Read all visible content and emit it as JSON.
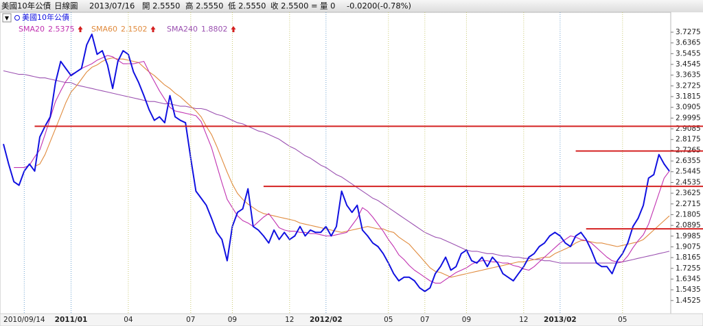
{
  "chart_data": {
    "type": "line",
    "header": [
      "美國10年公債",
      "日線圖",
      "2013/07/16",
      "開 2.5550",
      "高 2.5550",
      "低 2.5550",
      "收 2.5500 =",
      "量 0",
      "-0.0200(-0.78%)"
    ],
    "categories": [
      null,
      null,
      null,
      null,
      "2010/09/14",
      null,
      null,
      null,
      null,
      null,
      null,
      null,
      null,
      "2011/01",
      null,
      null,
      null,
      null,
      null,
      null,
      null,
      null,
      null,
      null,
      "04",
      null,
      null,
      null,
      null,
      null,
      null,
      null,
      null,
      null,
      null,
      null,
      "07",
      null,
      null,
      null,
      null,
      null,
      null,
      null,
      "09",
      null,
      null,
      null,
      null,
      null,
      null,
      null,
      null,
      null,
      null,
      "12",
      null,
      null,
      null,
      null,
      null,
      null,
      "2012/02",
      null,
      null,
      null,
      null,
      null,
      null,
      null,
      null,
      null,
      null,
      null,
      "05",
      null,
      null,
      null,
      null,
      null,
      null,
      "07",
      null,
      null,
      null,
      null,
      null,
      null,
      null,
      "09",
      null,
      null,
      null,
      null,
      null,
      null,
      null,
      null,
      null,
      null,
      "12",
      null,
      null,
      null,
      null,
      null,
      null,
      "2013/02",
      null,
      null,
      null,
      null,
      null,
      null,
      null,
      null,
      null,
      null,
      null,
      "05",
      null,
      null,
      null,
      null,
      null,
      null,
      null,
      null,
      null
    ],
    "series": [
      {
        "name": "美國10年公債",
        "color": "#1010e0",
        "values": [
          2.78,
          2.61,
          2.46,
          2.43,
          2.55,
          2.61,
          2.55,
          2.84,
          2.93,
          3.01,
          3.3,
          3.48,
          3.42,
          3.36,
          3.39,
          3.42,
          3.62,
          3.71,
          3.54,
          3.57,
          3.45,
          3.25,
          3.48,
          3.57,
          3.54,
          3.39,
          3.3,
          3.19,
          3.07,
          2.98,
          3.01,
          2.96,
          3.19,
          3.01,
          2.98,
          2.96,
          2.66,
          2.38,
          2.32,
          2.26,
          2.15,
          2.03,
          1.97,
          1.79,
          2.08,
          2.2,
          2.23,
          2.4,
          2.08,
          2.05,
          2.0,
          1.94,
          2.05,
          1.97,
          2.03,
          1.97,
          2.0,
          2.08,
          2.0,
          2.05,
          2.03,
          2.03,
          2.08,
          2.0,
          2.08,
          2.38,
          2.26,
          2.2,
          2.26,
          2.05,
          2.0,
          1.94,
          1.91,
          1.85,
          1.77,
          1.68,
          1.62,
          1.65,
          1.65,
          1.62,
          1.56,
          1.53,
          1.56,
          1.68,
          1.74,
          1.82,
          1.71,
          1.74,
          1.85,
          1.88,
          1.79,
          1.77,
          1.82,
          1.74,
          1.82,
          1.77,
          1.68,
          1.65,
          1.62,
          1.68,
          1.74,
          1.82,
          1.85,
          1.91,
          1.94,
          2.0,
          2.03,
          2.0,
          1.94,
          1.91,
          2.0,
          2.03,
          1.97,
          1.88,
          1.77,
          1.74,
          1.74,
          1.68,
          1.79,
          1.85,
          1.94,
          2.08,
          2.15,
          2.26,
          2.49,
          2.52,
          2.69,
          2.61,
          2.55
        ]
      },
      {
        "name": "SMA20",
        "latest": "2.5375",
        "color": "#c030b0",
        "values": [
          null,
          null,
          2.58,
          2.58,
          2.58,
          2.6,
          2.67,
          2.73,
          2.86,
          3.0,
          3.14,
          3.23,
          3.31,
          3.37,
          3.39,
          3.42,
          3.44,
          3.46,
          3.49,
          3.51,
          3.53,
          3.52,
          3.49,
          3.46,
          3.46,
          3.46,
          3.47,
          3.48,
          3.39,
          3.31,
          3.23,
          3.16,
          3.09,
          3.06,
          3.05,
          3.04,
          3.03,
          3.02,
          2.97,
          2.86,
          2.75,
          2.6,
          2.45,
          2.31,
          2.24,
          2.17,
          2.13,
          2.11,
          2.08,
          2.12,
          2.16,
          2.19,
          2.13,
          2.07,
          2.05,
          2.04,
          2.04,
          2.03,
          2.03,
          2.02,
          2.02,
          2.01,
          2.0,
          2.0,
          2.01,
          2.02,
          2.03,
          2.09,
          2.15,
          2.24,
          2.21,
          2.16,
          2.1,
          2.04,
          1.97,
          1.91,
          1.84,
          1.8,
          1.75,
          1.71,
          1.68,
          1.65,
          1.62,
          1.6,
          1.6,
          1.63,
          1.66,
          1.69,
          1.71,
          1.73,
          1.76,
          1.78,
          1.79,
          1.79,
          1.78,
          1.78,
          1.77,
          1.77,
          1.75,
          1.74,
          1.72,
          1.71,
          1.74,
          1.78,
          1.82,
          1.86,
          1.9,
          1.94,
          1.97,
          2.0,
          1.99,
          1.97,
          1.96,
          1.94,
          1.9,
          1.86,
          1.82,
          1.79,
          1.78,
          1.78,
          1.83,
          1.9,
          1.96,
          2.01,
          2.1,
          2.23,
          2.36,
          2.49,
          2.55
        ]
      },
      {
        "name": "SMA60",
        "latest": "2.1502",
        "color": "#e08a3c",
        "values": [
          null,
          null,
          null,
          null,
          null,
          null,
          2.59,
          2.61,
          2.69,
          2.8,
          2.91,
          3.02,
          3.13,
          3.22,
          3.27,
          3.33,
          3.39,
          3.43,
          3.45,
          3.48,
          3.5,
          3.51,
          3.5,
          3.5,
          3.49,
          3.48,
          3.47,
          3.43,
          3.39,
          3.36,
          3.32,
          3.28,
          3.25,
          3.21,
          3.18,
          3.14,
          3.1,
          3.06,
          3.01,
          2.93,
          2.86,
          2.76,
          2.65,
          2.54,
          2.44,
          2.36,
          2.31,
          2.27,
          2.24,
          2.21,
          2.19,
          2.18,
          2.17,
          2.16,
          2.15,
          2.14,
          2.13,
          2.11,
          2.1,
          2.09,
          2.08,
          2.07,
          2.06,
          2.05,
          2.04,
          2.03,
          2.04,
          2.05,
          2.06,
          2.07,
          2.08,
          2.07,
          2.06,
          2.06,
          2.04,
          2.03,
          1.99,
          1.96,
          1.93,
          1.88,
          1.83,
          1.78,
          1.73,
          1.7,
          1.69,
          1.67,
          1.65,
          1.66,
          1.67,
          1.68,
          1.69,
          1.7,
          1.71,
          1.72,
          1.73,
          1.74,
          1.75,
          1.76,
          1.77,
          1.78,
          1.78,
          1.79,
          1.8,
          1.81,
          1.82,
          1.82,
          1.85,
          1.87,
          1.89,
          1.91,
          1.94,
          1.96,
          1.96,
          1.95,
          1.94,
          1.94,
          1.93,
          1.92,
          1.91,
          1.92,
          1.93,
          1.94,
          1.95,
          1.97,
          2.01,
          2.05,
          2.09,
          2.13,
          2.17
        ]
      },
      {
        "name": "SMA240",
        "latest": "1.8802",
        "color": "#9a4fb0",
        "values": [
          3.4,
          3.39,
          3.38,
          3.37,
          3.37,
          3.36,
          3.35,
          3.34,
          3.34,
          3.33,
          3.32,
          3.31,
          3.3,
          3.3,
          3.28,
          3.27,
          3.26,
          3.25,
          3.24,
          3.23,
          3.22,
          3.21,
          3.2,
          3.19,
          3.18,
          3.17,
          3.16,
          3.15,
          3.14,
          3.14,
          3.13,
          3.12,
          3.12,
          3.11,
          3.1,
          3.1,
          3.09,
          3.08,
          3.08,
          3.07,
          3.05,
          3.03,
          3.02,
          3.0,
          2.98,
          2.96,
          2.95,
          2.93,
          2.91,
          2.89,
          2.88,
          2.86,
          2.84,
          2.82,
          2.79,
          2.76,
          2.74,
          2.71,
          2.68,
          2.66,
          2.63,
          2.6,
          2.58,
          2.55,
          2.52,
          2.5,
          2.47,
          2.44,
          2.41,
          2.38,
          2.35,
          2.32,
          2.3,
          2.27,
          2.24,
          2.21,
          2.18,
          2.15,
          2.12,
          2.09,
          2.06,
          2.03,
          2.01,
          1.99,
          1.98,
          1.96,
          1.94,
          1.92,
          1.9,
          1.88,
          1.87,
          1.87,
          1.86,
          1.85,
          1.85,
          1.84,
          1.83,
          1.83,
          1.82,
          1.82,
          1.81,
          1.81,
          1.8,
          1.8,
          1.79,
          1.79,
          1.78,
          1.77,
          1.77,
          1.77,
          1.77,
          1.77,
          1.77,
          1.77,
          1.77,
          1.77,
          1.77,
          1.77,
          1.77,
          1.78,
          1.79,
          1.8,
          1.81,
          1.82,
          1.83,
          1.84,
          1.85,
          1.86,
          1.87
        ]
      }
    ],
    "hlines": [
      {
        "value": 2.93,
        "from": 6,
        "color": "#d42020"
      },
      {
        "value": 2.72,
        "from": 110,
        "color": "#d42020"
      },
      {
        "value": 2.42,
        "from": 50,
        "color": "#d42020"
      },
      {
        "value": 2.06,
        "from": 112,
        "color": "#d42020"
      }
    ],
    "ylim": [
      1.341,
      3.896
    ],
    "yticks": [
      3.7275,
      3.6365,
      3.5455,
      3.4545,
      3.3635,
      3.2725,
      3.1815,
      3.0905,
      2.9995,
      2.9085,
      2.8175,
      2.7265,
      2.6355,
      2.5445,
      2.4535,
      2.3625,
      2.2715,
      2.1805,
      2.0895,
      1.9985,
      1.9075,
      1.8165,
      1.7255,
      1.6345,
      1.5435,
      1.4525
    ]
  }
}
